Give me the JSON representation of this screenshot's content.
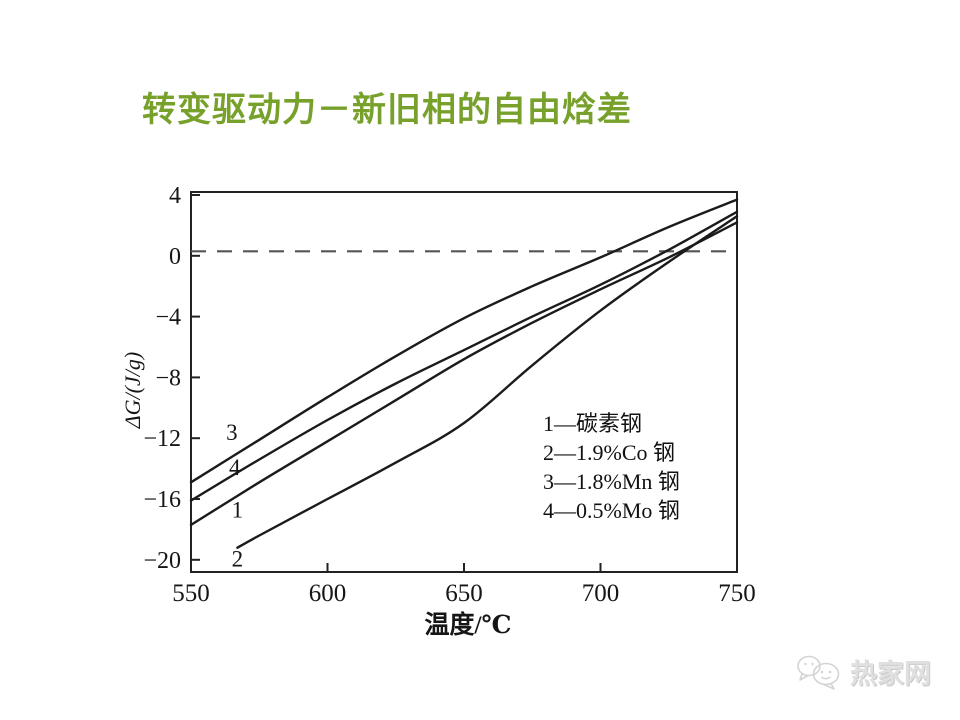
{
  "slide": {
    "title": "转变驱动力－新旧相的自由焓差",
    "title_color": "#77a12b",
    "background_color": "#ffffff",
    "watermark_text": "热家网"
  },
  "chart_data": {
    "type": "line",
    "title": "",
    "xlabel": "温度/℃",
    "ylabel": "ΔG/(J/g)",
    "xlim": [
      550,
      750
    ],
    "ylim": [
      -20.8,
      4.2
    ],
    "xticks": [
      550,
      600,
      650,
      700,
      750
    ],
    "xtick_labels": [
      "550",
      "600",
      "650",
      "700",
      "750"
    ],
    "yticks": [
      4,
      0,
      -4,
      -8,
      -12,
      -16,
      -20
    ],
    "ytick_labels": [
      "4",
      "0",
      "−4",
      "−8",
      "−12",
      "−16",
      "−20"
    ],
    "grid": false,
    "dashed_line_y": 0.3,
    "line_color": "#1b1b1b",
    "axis_color": "#222222",
    "legend_position": "inside-right",
    "legend_entries": [
      "1—碳素钢",
      "2—1.9%Co 钢",
      "3—1.8%Mn 钢",
      "4—0.5%Mo 钢"
    ],
    "curve_labels": [
      {
        "text": "3",
        "x": 565,
        "y": -11.6
      },
      {
        "text": "4",
        "x": 566,
        "y": -13.9
      },
      {
        "text": "1",
        "x": 567,
        "y": -16.7
      },
      {
        "text": "2",
        "x": 567,
        "y": -19.9
      }
    ],
    "series": [
      {
        "name": "1",
        "steel": "碳素钢",
        "x": [
          550,
          575,
          600,
          625,
          650,
          675,
          700,
          725,
          750
        ],
        "y": [
          -17.7,
          -14.9,
          -12.2,
          -9.5,
          -6.8,
          -4.4,
          -2.2,
          -0.1,
          2.2
        ]
      },
      {
        "name": "2",
        "steel": "1.9%Co 钢",
        "x": [
          567,
          575,
          600,
          625,
          650,
          675,
          700,
          725,
          750
        ],
        "y": [
          -19.2,
          -18.4,
          -16.0,
          -13.6,
          -11.0,
          -7.2,
          -3.6,
          -0.4,
          2.6
        ]
      },
      {
        "name": "3",
        "steel": "1.8%Mn 钢",
        "x": [
          550,
          575,
          600,
          625,
          650,
          675,
          700,
          725,
          750
        ],
        "y": [
          -14.9,
          -12.1,
          -9.3,
          -6.6,
          -4.1,
          -2.0,
          -0.1,
          1.9,
          3.7
        ]
      },
      {
        "name": "4",
        "steel": "0.5%Mo 钢",
        "x": [
          550,
          575,
          600,
          625,
          650,
          675,
          700,
          725,
          750
        ],
        "y": [
          -16.1,
          -13.4,
          -10.8,
          -8.4,
          -6.2,
          -4.0,
          -1.9,
          0.4,
          2.9
        ]
      }
    ]
  }
}
